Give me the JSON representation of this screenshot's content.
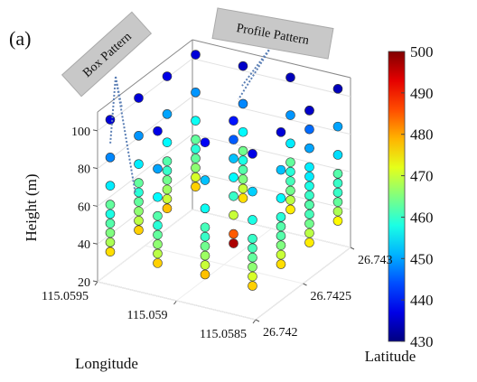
{
  "chart_data": {
    "type": "scatter3d",
    "panel_label": "(a)",
    "annotations": [
      "Box Pattern",
      "Profile Pattern"
    ],
    "xlabel": "Longitude",
    "ylabel": "Latitude",
    "zlabel": "Height (m)",
    "xlim": [
      115.0595,
      115.0585
    ],
    "xticks": [
      115.0595,
      115.059,
      115.0585
    ],
    "ylim": [
      26.742,
      26.743
    ],
    "yticks": [
      26.742,
      26.7425,
      26.743
    ],
    "zlim": [
      20,
      110
    ],
    "zticks": [
      20,
      40,
      60,
      80,
      100
    ],
    "clim": [
      430,
      500
    ],
    "cticks": [
      430,
      440,
      450,
      460,
      470,
      480,
      490,
      500
    ],
    "colormap": "jet",
    "series": [
      {
        "lon": [
          115.05945,
          115.05915,
          115.05885,
          115.05855,
          115.05855,
          115.05855,
          115.05855,
          115.05885,
          115.05915,
          115.05945,
          115.05945,
          115.05945
        ],
        "lat": [
          26.74205,
          26.74205,
          26.74205,
          26.74205,
          26.74235,
          26.74265,
          26.74295,
          26.74295,
          26.74295,
          26.74295,
          26.74265,
          26.74235
        ],
        "height": [
          35,
          35,
          35,
          35,
          35,
          35,
          35,
          35,
          35,
          35,
          35,
          35
        ],
        "values": [
          476,
          477,
          478,
          477,
          476,
          475,
          474,
          475,
          476,
          477,
          478,
          477
        ]
      },
      {
        "lon": [
          115.05945,
          115.05915,
          115.05885,
          115.05855,
          115.05855,
          115.05855,
          115.05855,
          115.05885,
          115.05915,
          115.05945,
          115.05945,
          115.05945
        ],
        "lat": [
          26.74205,
          26.74205,
          26.74205,
          26.74205,
          26.74235,
          26.74265,
          26.74295,
          26.74295,
          26.74295,
          26.74295,
          26.74265,
          26.74235
        ],
        "height": [
          40,
          40,
          40,
          40,
          40,
          40,
          40,
          40,
          40,
          40,
          40,
          40
        ],
        "values": [
          468,
          469,
          470,
          471,
          470,
          469,
          468,
          469,
          470,
          471,
          470,
          469
        ]
      },
      {
        "lon": [
          115.05945,
          115.05915,
          115.05885,
          115.05855,
          115.05855,
          115.05855,
          115.05855,
          115.05885,
          115.05915,
          115.05945,
          115.05945,
          115.05945
        ],
        "lat": [
          26.74205,
          26.74205,
          26.74205,
          26.74205,
          26.74235,
          26.74265,
          26.74295,
          26.74295,
          26.74295,
          26.74295,
          26.74265,
          26.74235
        ],
        "height": [
          45,
          45,
          45,
          45,
          45,
          45,
          45,
          45,
          45,
          45,
          45,
          45
        ],
        "values": [
          465,
          466,
          467,
          466,
          465,
          464,
          463,
          464,
          465,
          466,
          467,
          466
        ]
      },
      {
        "lon": [
          115.05945,
          115.05915,
          115.05885,
          115.05855,
          115.05855,
          115.05855,
          115.05855,
          115.05885,
          115.05915,
          115.05945,
          115.05945,
          115.05945
        ],
        "lat": [
          26.74205,
          26.74205,
          26.74205,
          26.74205,
          26.74235,
          26.74265,
          26.74295,
          26.74295,
          26.74295,
          26.74295,
          26.74265,
          26.74235
        ],
        "height": [
          50,
          50,
          50,
          50,
          50,
          50,
          50,
          50,
          50,
          50,
          50,
          50
        ],
        "values": [
          462,
          463,
          464,
          463,
          462,
          461,
          460,
          461,
          462,
          463,
          464,
          463
        ]
      },
      {
        "lon": [
          115.05945,
          115.05915,
          115.05885,
          115.05855,
          115.05855,
          115.05855,
          115.05855,
          115.05885,
          115.05915,
          115.05945,
          115.05945,
          115.05945
        ],
        "lat": [
          26.74205,
          26.74205,
          26.74205,
          26.74205,
          26.74235,
          26.74265,
          26.74295,
          26.74295,
          26.74295,
          26.74295,
          26.74265,
          26.74235
        ],
        "height": [
          55,
          55,
          55,
          55,
          55,
          55,
          55,
          55,
          55,
          55,
          55,
          55
        ],
        "values": [
          458,
          459,
          460,
          461,
          462,
          461,
          460,
          459,
          458,
          459,
          460,
          459
        ]
      },
      {
        "lon": [
          115.05945,
          115.05915,
          115.05885,
          115.05855,
          115.05855,
          115.05855,
          115.05855,
          115.05885,
          115.05915,
          115.05945,
          115.05945,
          115.05945
        ],
        "lat": [
          26.74205,
          26.74205,
          26.74205,
          26.74205,
          26.74235,
          26.74265,
          26.74295,
          26.74295,
          26.74295,
          26.74295,
          26.74265,
          26.74235
        ],
        "height": [
          60,
          60,
          60,
          60,
          60,
          60,
          60,
          60,
          60,
          60,
          60,
          60
        ],
        "values": [
          463,
          462,
          461,
          460,
          459,
          460,
          462,
          463,
          464,
          463,
          462,
          463
        ]
      },
      {
        "lon": [
          115.05945,
          115.05915,
          115.05885,
          115.05855,
          115.05855,
          115.05855,
          115.05855,
          115.05885,
          115.05915,
          115.05945,
          115.05945,
          115.05945
        ],
        "lat": [
          26.74205,
          26.74205,
          26.74205,
          26.74205,
          26.74235,
          26.74265,
          26.74295,
          26.74295,
          26.74295,
          26.74295,
          26.74265,
          26.74235
        ],
        "height": [
          70,
          70,
          70,
          70,
          70,
          70,
          70,
          70,
          70,
          70,
          70,
          70
        ],
        "values": [
          455,
          456,
          457,
          458,
          456,
          455,
          454,
          455,
          456,
          457,
          456,
          455
        ]
      },
      {
        "lon": [
          115.05945,
          115.05915,
          115.05885,
          115.05855,
          115.05855,
          115.05855,
          115.05855,
          115.05885,
          115.05915,
          115.05945,
          115.05945,
          115.05945
        ],
        "lat": [
          26.74205,
          26.74205,
          26.74205,
          26.74205,
          26.74235,
          26.74265,
          26.74295,
          26.74295,
          26.74295,
          26.74295,
          26.74265,
          26.74235
        ],
        "height": [
          85,
          85,
          85,
          85,
          85,
          85,
          85,
          85,
          85,
          85,
          85,
          85
        ],
        "values": [
          448,
          450,
          452,
          453,
          452,
          451,
          450,
          449,
          448,
          449,
          450,
          449
        ]
      },
      {
        "lon": [
          115.05885,
          115.05885,
          115.05885,
          115.05885,
          115.05885,
          115.05885,
          115.05885,
          115.05885
        ],
        "lat": [
          26.74235,
          26.74235,
          26.74235,
          26.74235,
          26.74235,
          26.74235,
          26.74235,
          26.74235
        ],
        "height": [
          40,
          45,
          55,
          65,
          75,
          85,
          95,
          105
        ],
        "values": [
          497,
          485,
          470,
          460,
          456,
          452,
          445,
          440
        ]
      },
      {
        "lon": [
          115.05855,
          115.05855,
          115.05855,
          115.05855,
          115.05855,
          115.05855
        ],
        "lat": [
          26.74265,
          26.74265,
          26.74265,
          26.74265,
          26.74265,
          26.74265
        ],
        "height": [
          55,
          65,
          75,
          85,
          95,
          105
        ],
        "values": [
          462,
          458,
          455,
          450,
          446,
          442
        ]
      },
      {
        "lon": [
          115.05945,
          115.05915,
          115.05885,
          115.05855,
          115.05855,
          115.05855,
          115.05855,
          115.05885,
          115.05915,
          115.05945,
          115.05945,
          115.05945
        ],
        "lat": [
          26.74205,
          26.74205,
          26.74205,
          26.74205,
          26.74235,
          26.74265,
          26.74295,
          26.74295,
          26.74295,
          26.74295,
          26.74265,
          26.74235
        ],
        "height": [
          105,
          105,
          105,
          105,
          105,
          105,
          105,
          105,
          105,
          105,
          105,
          105
        ],
        "values": [
          436,
          437,
          438,
          437,
          436,
          435,
          434,
          434,
          435,
          436,
          437,
          436
        ]
      }
    ]
  }
}
